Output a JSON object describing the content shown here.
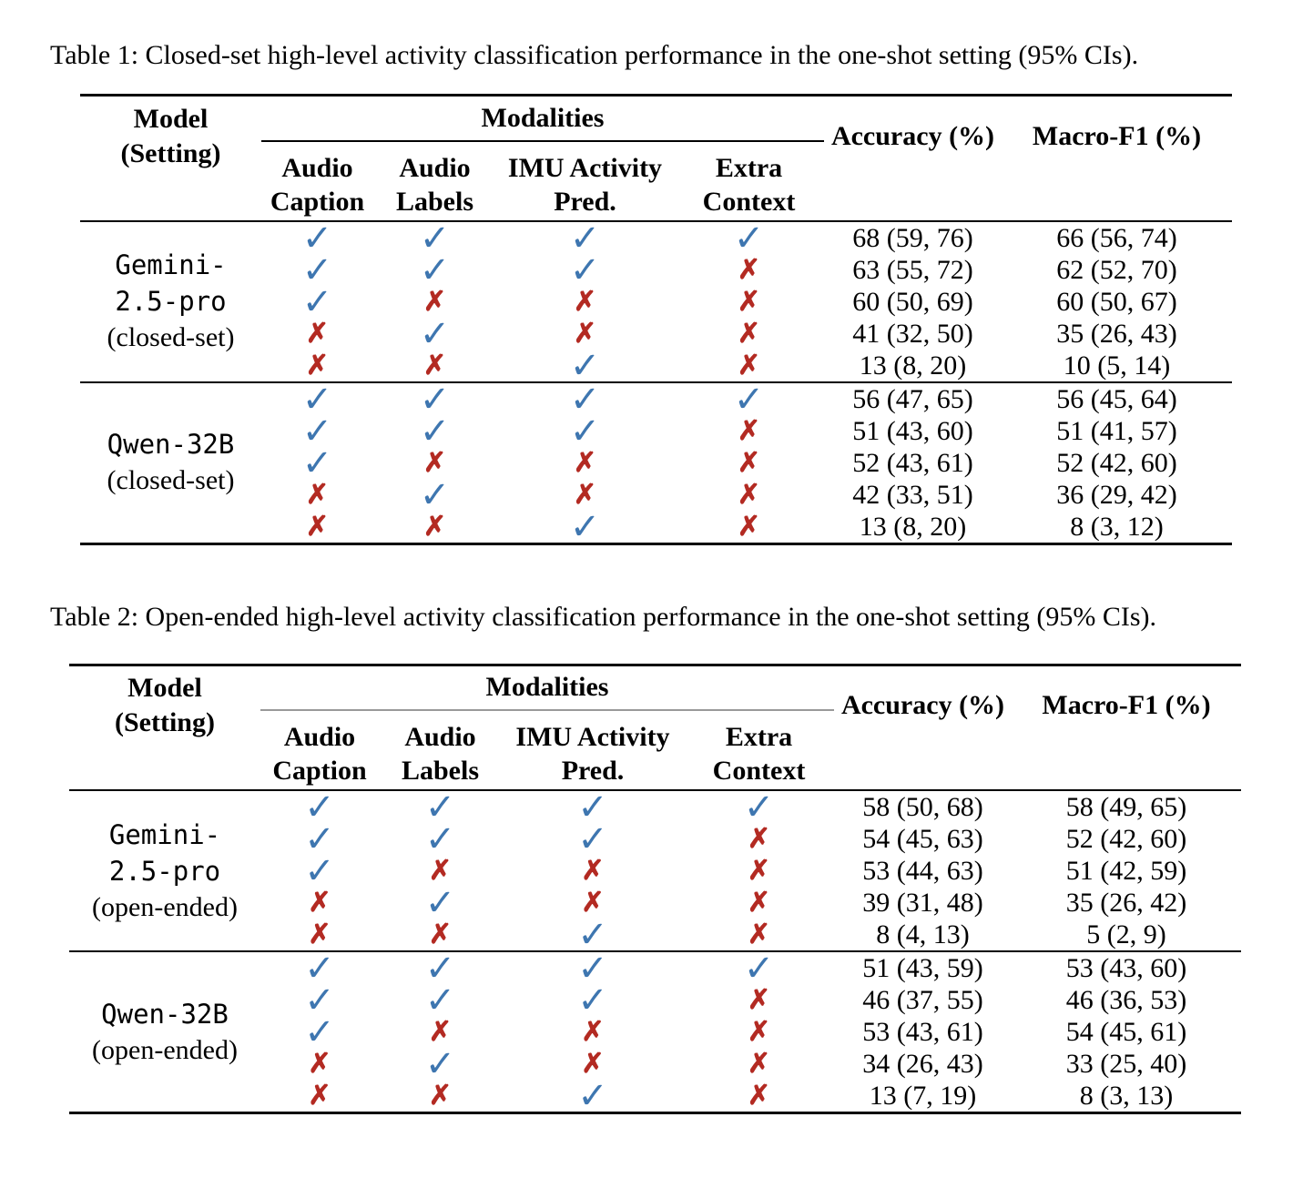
{
  "icons": {
    "check": "✓",
    "cross": "✗"
  },
  "colors": {
    "check_blue": "#3E76B0",
    "cross_red": "#B32A22",
    "rule_black": "#000000",
    "table2_modalities_rule_gray": "#999999",
    "background": "#ffffff"
  },
  "tables": [
    {
      "caption": "Table 1: Closed-set high-level activity classification performance in the one-shot setting (95% CIs).",
      "header": {
        "model": "Model",
        "setting": "(Setting)",
        "modalities": "Modalities",
        "subcols": [
          [
            "Audio",
            "Caption"
          ],
          [
            "Audio",
            "Labels"
          ],
          [
            "IMU Activity",
            "Pred."
          ],
          [
            "Extra",
            "Context"
          ]
        ],
        "accuracy": "Accuracy (%)",
        "macro_f1": "Macro-F1 (%)"
      },
      "sections": [
        {
          "model_lines_mono": [
            "Gemini-",
            "2.5-pro"
          ],
          "model_setting": "(closed-set)",
          "rows": [
            {
              "marks": [
                "check",
                "check",
                "check",
                "check"
              ],
              "accuracy": "68 (59, 76)",
              "macro_f1": "66 (56, 74)"
            },
            {
              "marks": [
                "check",
                "check",
                "check",
                "cross"
              ],
              "accuracy": "63 (55, 72)",
              "macro_f1": "62 (52, 70)"
            },
            {
              "marks": [
                "check",
                "cross",
                "cross",
                "cross"
              ],
              "accuracy": "60 (50, 69)",
              "macro_f1": "60 (50, 67)"
            },
            {
              "marks": [
                "cross",
                "check",
                "cross",
                "cross"
              ],
              "accuracy": "41 (32, 50)",
              "macro_f1": "35 (26, 43)"
            },
            {
              "marks": [
                "cross",
                "cross",
                "check",
                "cross"
              ],
              "accuracy": "13 (8, 20)",
              "macro_f1": "10 (5, 14)"
            }
          ]
        },
        {
          "model_lines_mono": [
            "Qwen-32B"
          ],
          "model_setting": "(closed-set)",
          "rows": [
            {
              "marks": [
                "check",
                "check",
                "check",
                "check"
              ],
              "accuracy": "56 (47, 65)",
              "macro_f1": "56 (45, 64)"
            },
            {
              "marks": [
                "check",
                "check",
                "check",
                "cross"
              ],
              "accuracy": "51 (43, 60)",
              "macro_f1": "51 (41, 57)"
            },
            {
              "marks": [
                "check",
                "cross",
                "cross",
                "cross"
              ],
              "accuracy": "52 (43, 61)",
              "macro_f1": "52 (42, 60)"
            },
            {
              "marks": [
                "cross",
                "check",
                "cross",
                "cross"
              ],
              "accuracy": "42 (33, 51)",
              "macro_f1": "36 (29, 42)"
            },
            {
              "marks": [
                "cross",
                "cross",
                "check",
                "cross"
              ],
              "accuracy": "13 (8, 20)",
              "macro_f1": "8 (3, 12)"
            }
          ]
        }
      ]
    },
    {
      "caption": "Table 2: Open-ended high-level activity classification performance in the one-shot setting (95% CIs).",
      "header": {
        "model": "Model",
        "setting": "(Setting)",
        "modalities": "Modalities",
        "subcols": [
          [
            "Audio",
            "Caption"
          ],
          [
            "Audio",
            "Labels"
          ],
          [
            "IMU Activity",
            "Pred."
          ],
          [
            "Extra",
            "Context"
          ]
        ],
        "accuracy": "Accuracy (%)",
        "macro_f1": "Macro-F1 (%)"
      },
      "sections": [
        {
          "model_lines_mono": [
            "Gemini-",
            "2.5-pro"
          ],
          "model_setting": "(open-ended)",
          "rows": [
            {
              "marks": [
                "check",
                "check",
                "check",
                "check"
              ],
              "accuracy": "58 (50, 68)",
              "macro_f1": "58 (49, 65)"
            },
            {
              "marks": [
                "check",
                "check",
                "check",
                "cross"
              ],
              "accuracy": "54 (45, 63)",
              "macro_f1": "52 (42, 60)"
            },
            {
              "marks": [
                "check",
                "cross",
                "cross",
                "cross"
              ],
              "accuracy": "53 (44, 63)",
              "macro_f1": "51 (42, 59)"
            },
            {
              "marks": [
                "cross",
                "check",
                "cross",
                "cross"
              ],
              "accuracy": "39 (31, 48)",
              "macro_f1": "35 (26, 42)"
            },
            {
              "marks": [
                "cross",
                "cross",
                "check",
                "cross"
              ],
              "accuracy": "8 (4, 13)",
              "macro_f1": "5 (2, 9)"
            }
          ]
        },
        {
          "model_lines_mono": [
            "Qwen-32B"
          ],
          "model_setting": "(open-ended)",
          "rows": [
            {
              "marks": [
                "check",
                "check",
                "check",
                "check"
              ],
              "accuracy": "51 (43, 59)",
              "macro_f1": "53 (43, 60)"
            },
            {
              "marks": [
                "check",
                "check",
                "check",
                "cross"
              ],
              "accuracy": "46 (37, 55)",
              "macro_f1": "46 (36, 53)"
            },
            {
              "marks": [
                "check",
                "cross",
                "cross",
                "cross"
              ],
              "accuracy": "53 (43, 61)",
              "macro_f1": "54 (45, 61)"
            },
            {
              "marks": [
                "cross",
                "check",
                "cross",
                "cross"
              ],
              "accuracy": "34 (26, 43)",
              "macro_f1": "33 (25, 40)"
            },
            {
              "marks": [
                "cross",
                "cross",
                "check",
                "cross"
              ],
              "accuracy": "13 (7, 19)",
              "macro_f1": "8 (3, 13)"
            }
          ]
        }
      ]
    }
  ]
}
